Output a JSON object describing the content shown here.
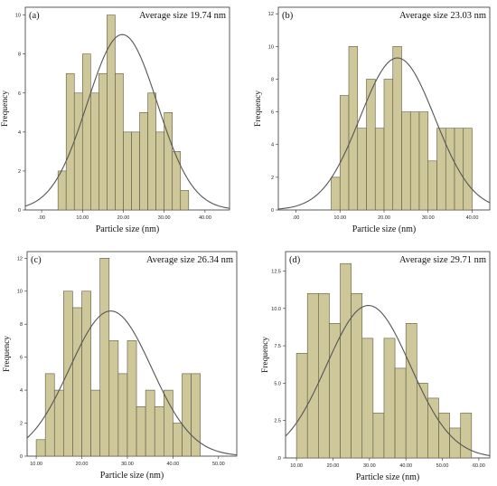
{
  "colors": {
    "bar_fill": "#cdc79a",
    "bar_stroke": "#5e5b42",
    "curve": "#555555",
    "frame": "#333333"
  },
  "chart_data": [
    {
      "type": "bar",
      "panel_label": "(a)",
      "annotation": "Average size 19.74 nm",
      "xlabel": "Particle size (nm)",
      "ylabel": "Frequency",
      "xlim": [
        -4,
        46
      ],
      "ylim": [
        0,
        10.4
      ],
      "xticks": [
        ".00",
        "10.00",
        "20.00",
        "30.00",
        "40.00"
      ],
      "xtick_values": [
        0,
        10,
        20,
        30,
        40
      ],
      "yticks": [
        "0",
        "2",
        "4",
        "6",
        "8",
        "10"
      ],
      "ytick_values": [
        0,
        2,
        4,
        6,
        8,
        10
      ],
      "bin_start": 4,
      "bin_width": 2,
      "values": [
        2,
        7,
        6,
        8,
        6,
        7,
        10,
        7,
        4,
        4,
        5,
        6,
        4,
        5,
        3,
        1
      ],
      "curve": {
        "mean": 19.74,
        "sd": 8.6,
        "peak": 9
      }
    },
    {
      "type": "bar",
      "panel_label": "(b)",
      "annotation": "Average size 23.03 nm",
      "xlabel": "Particle size (nm)",
      "ylabel": "Frequency",
      "xlim": [
        -4,
        44
      ],
      "ylim": [
        0,
        12.4
      ],
      "xticks": [
        ".00",
        "10.00",
        "20.00",
        "30.00",
        "40.00"
      ],
      "xtick_values": [
        0,
        10,
        20,
        30,
        40
      ],
      "yticks": [
        "0",
        "2",
        "4",
        "6",
        "8",
        "10",
        "12"
      ],
      "ytick_values": [
        0,
        2,
        4,
        6,
        8,
        10,
        12
      ],
      "bin_start": 8,
      "bin_width": 2,
      "values": [
        2,
        7,
        10,
        5,
        8,
        5,
        8,
        10,
        6,
        6,
        6,
        3,
        5,
        5,
        5,
        5
      ],
      "curve": {
        "mean": 23.03,
        "sd": 8.5,
        "peak": 9.3
      }
    },
    {
      "type": "bar",
      "panel_label": "(c)",
      "annotation": "Average size 26.34 nm",
      "xlabel": "Particle size (nm)",
      "ylabel": "Frequency",
      "xlim": [
        8,
        54
      ],
      "ylim": [
        0,
        12.4
      ],
      "xticks": [
        "10.00",
        "20.00",
        "30.00",
        "40.00",
        "50.00"
      ],
      "xtick_values": [
        10,
        20,
        30,
        40,
        50
      ],
      "yticks": [
        "0",
        "2",
        "4",
        "6",
        "8",
        "10",
        "12"
      ],
      "ytick_values": [
        0,
        2,
        4,
        6,
        8,
        10,
        12
      ],
      "bin_start": 10,
      "bin_width": 2,
      "values": [
        1,
        5,
        4,
        10,
        9,
        10,
        4,
        12,
        7,
        5,
        7,
        3,
        4,
        3,
        4,
        2,
        5,
        5
      ],
      "curve": {
        "mean": 26.34,
        "sd": 9.0,
        "peak": 8.8
      }
    },
    {
      "type": "bar",
      "panel_label": "(d)",
      "annotation": "Average size 29.71 nm",
      "xlabel": "Particle size (nm)",
      "ylabel": "Frequency",
      "xlim": [
        7,
        63
      ],
      "ylim": [
        0,
        13.8
      ],
      "xticks": [
        "10.00",
        "20.00",
        "30.00",
        "40.00",
        "50.00",
        "60.00"
      ],
      "xtick_values": [
        10,
        20,
        30,
        40,
        50,
        60
      ],
      "yticks": [
        ".0",
        "2.5",
        "5.0",
        "7.5",
        "10.0",
        "12.5"
      ],
      "ytick_values": [
        0,
        2.5,
        5,
        7.5,
        10,
        12.5
      ],
      "bin_start": 10,
      "bin_width": 3,
      "values": [
        7,
        11,
        11,
        9,
        13,
        11,
        8,
        3,
        8,
        6,
        9,
        5,
        4,
        3,
        2,
        3
      ],
      "curve": {
        "mean": 29.71,
        "sd": 11.5,
        "peak": 10.2
      }
    }
  ]
}
